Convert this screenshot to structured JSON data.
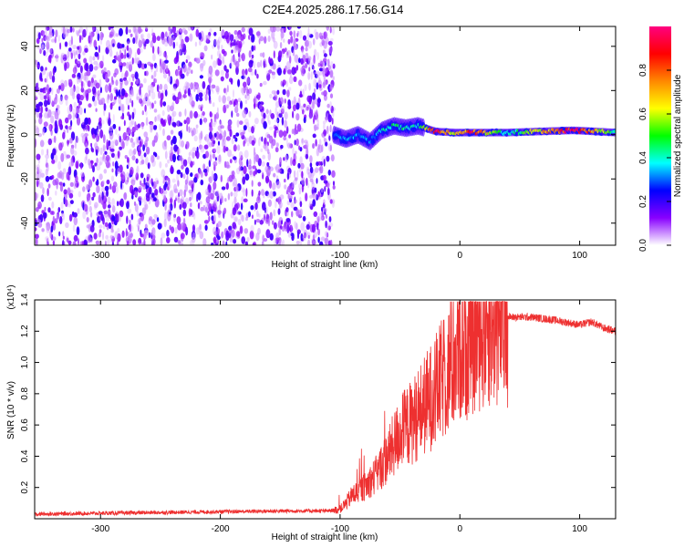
{
  "title": "C2E4.2025.286.17.56.G14",
  "chart_data": [
    {
      "type": "heatmap",
      "xlabel": "Height of straight line (km)",
      "ylabel": "Frequency (Hz)",
      "xlim": [
        -355,
        130
      ],
      "ylim": [
        -50,
        49
      ],
      "x_ticks": [
        -300,
        -200,
        -100,
        0,
        100
      ],
      "y_ticks": [
        -40,
        -20,
        0,
        20,
        40
      ],
      "colorbar": {
        "label": "Normalized spectral amplitude",
        "range": [
          0,
          1
        ],
        "ticks": [
          0.0,
          0.2,
          0.4,
          0.6,
          0.8
        ],
        "tick_labels": [
          "0.0",
          "0.2",
          "0.4",
          "0.6",
          "0.8"
        ],
        "colors": [
          "#ffffff",
          "#8800ff",
          "#0000ff",
          "#00ffff",
          "#00ff00",
          "#ffff00",
          "#ff8800",
          "#ff0000",
          "#ff0080"
        ]
      },
      "noise_region_x": [
        -355,
        -105
      ],
      "noise_amplitude": 0.12,
      "signal_track": [
        {
          "x": -105,
          "freq": 0,
          "amp": 0.3
        },
        {
          "x": -95,
          "freq": -2,
          "amp": 0.33
        },
        {
          "x": -85,
          "freq": 0,
          "amp": 0.33
        },
        {
          "x": -75,
          "freq": -3,
          "amp": 0.3
        },
        {
          "x": -65,
          "freq": 2,
          "amp": 0.38
        },
        {
          "x": -55,
          "freq": 4,
          "amp": 0.45
        },
        {
          "x": -45,
          "freq": 3,
          "amp": 0.42
        },
        {
          "x": -35,
          "freq": 4,
          "amp": 0.4
        },
        {
          "x": -20,
          "freq": 1.5,
          "amp": 0.9
        },
        {
          "x": -5,
          "freq": 1,
          "amp": 0.6
        },
        {
          "x": 10,
          "freq": 1,
          "amp": 0.85
        },
        {
          "x": 40,
          "freq": 1,
          "amp": 0.35
        },
        {
          "x": 95,
          "freq": 2,
          "amp": 0.95
        },
        {
          "x": 130,
          "freq": 1,
          "amp": 0.4
        }
      ]
    },
    {
      "type": "line",
      "xlabel": "Height of straight line (km)",
      "ylabel": "SNR (10 * v/v)",
      "y_multiplier": "(x10⁴)",
      "xlim": [
        -355,
        130
      ],
      "ylim": [
        0,
        1.4
      ],
      "x_ticks": [
        -300,
        -200,
        -100,
        0,
        100
      ],
      "y_ticks": [
        0.2,
        0.4,
        0.6,
        0.8,
        1.0,
        1.2,
        1.4
      ],
      "y_tick_labels": [
        "0.2",
        "0.4",
        "0.6",
        "0.8",
        "1.0",
        "1.2",
        "1.4"
      ],
      "color": "#ee3030",
      "series": [
        {
          "name": "SNR",
          "x": [
            -355,
            -300,
            -200,
            -140,
            -110,
            -100,
            -95,
            -90,
            -80,
            -70,
            -60,
            -50,
            -40,
            -30,
            -20,
            -10,
            0,
            10,
            20,
            30,
            40,
            60,
            80,
            100,
            110,
            120,
            130
          ],
          "values": [
            0.03,
            0.035,
            0.045,
            0.05,
            0.05,
            0.06,
            0.1,
            0.15,
            0.2,
            0.28,
            0.4,
            0.55,
            0.62,
            0.72,
            0.82,
            0.95,
            1.08,
            1.18,
            1.25,
            1.28,
            1.29,
            1.29,
            1.27,
            1.24,
            1.26,
            1.22,
            1.2
          ]
        }
      ]
    }
  ]
}
